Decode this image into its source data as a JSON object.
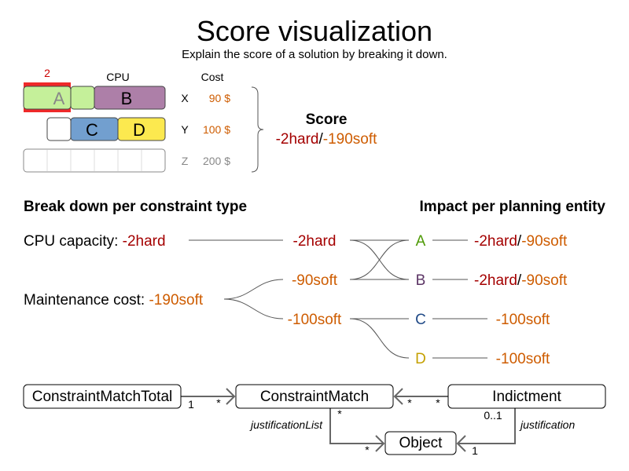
{
  "title": "Score visualization",
  "subtitle": "Explain the score of a solution by breaking it down.",
  "colors": {
    "hard": "#a40000",
    "soft": "#ce5c00",
    "A": "#4e9a06",
    "B": "#5c3566",
    "C": "#204a87",
    "D": "#c4a000"
  },
  "machines": {
    "overload": "2",
    "cpu_header": "CPU",
    "cost_header": "Cost",
    "rows": [
      {
        "name": "X",
        "cost": "90 $",
        "processes": [
          "A",
          "B"
        ]
      },
      {
        "name": "Y",
        "cost": "100 $",
        "processes": [
          "C",
          "D"
        ]
      },
      {
        "name": "Z",
        "cost": "200 $",
        "processes": []
      }
    ]
  },
  "score": {
    "label": "Score",
    "hard": "-2hard",
    "sep": "/",
    "soft": "-190soft"
  },
  "breakdown": {
    "left_heading": "Break down per constraint type",
    "right_heading": "Impact per planning entity",
    "constraints": [
      {
        "name": "CPU capacity: ",
        "score": "-2hard"
      },
      {
        "name": "Maintenance cost: ",
        "score": "-190soft"
      }
    ],
    "matches": [
      "-2hard",
      "-90soft",
      "-100soft"
    ],
    "entities": [
      {
        "name": "A",
        "hard": "-2hard",
        "sep": "/",
        "soft": "-90soft"
      },
      {
        "name": "B",
        "hard": "-2hard",
        "sep": "/",
        "soft": "-90soft"
      },
      {
        "name": "C",
        "soft": "-100soft"
      },
      {
        "name": "D",
        "soft": "-100soft"
      }
    ]
  },
  "uml": {
    "classes": [
      "ConstraintMatchTotal",
      "ConstraintMatch",
      "Indictment",
      "Object"
    ],
    "multiplicities": {
      "cmt_cm_1": "1",
      "cmt_cm_many": "*",
      "ind_cm_left": "*",
      "ind_cm_right": "*",
      "cm_obj_top": "*",
      "cm_obj_bottom": "*",
      "ind_obj_top": "0..1",
      "ind_obj_bottom": "1"
    },
    "roles": {
      "justification_list": "justificationList",
      "justification": "justification"
    }
  }
}
